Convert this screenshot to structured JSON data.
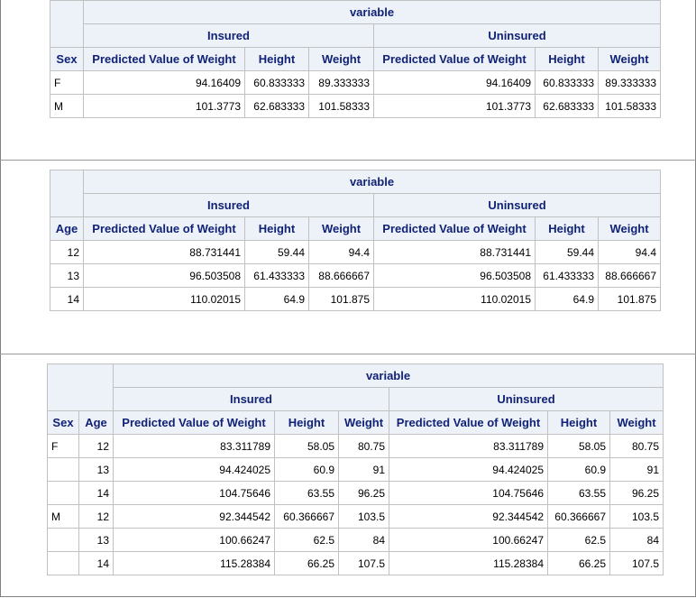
{
  "table_sex": {
    "spanner": "variable",
    "groups": [
      "Insured",
      "Uninsured"
    ],
    "row_header": "Sex",
    "columns": [
      "Predicted Value of Weight",
      "Height",
      "Weight",
      "Predicted Value of Weight",
      "Height",
      "Weight"
    ],
    "rows": [
      {
        "label": "F",
        "cells": [
          "94.16409",
          "60.833333",
          "89.333333",
          "94.16409",
          "60.833333",
          "89.333333"
        ]
      },
      {
        "label": "M",
        "cells": [
          "101.3773",
          "62.683333",
          "101.58333",
          "101.3773",
          "62.683333",
          "101.58333"
        ]
      }
    ]
  },
  "table_age": {
    "spanner": "variable",
    "groups": [
      "Insured",
      "Uninsured"
    ],
    "row_header": "Age",
    "columns": [
      "Predicted Value of Weight",
      "Height",
      "Weight",
      "Predicted Value of Weight",
      "Height",
      "Weight"
    ],
    "rows": [
      {
        "label": "12",
        "cells": [
          "88.731441",
          "59.44",
          "94.4",
          "88.731441",
          "59.44",
          "94.4"
        ]
      },
      {
        "label": "13",
        "cells": [
          "96.503508",
          "61.433333",
          "88.666667",
          "96.503508",
          "61.433333",
          "88.666667"
        ]
      },
      {
        "label": "14",
        "cells": [
          "110.02015",
          "64.9",
          "101.875",
          "110.02015",
          "64.9",
          "101.875"
        ]
      }
    ]
  },
  "table_sex_age": {
    "spanner": "variable",
    "groups": [
      "Insured",
      "Uninsured"
    ],
    "row_headers": [
      "Sex",
      "Age"
    ],
    "columns": [
      "Predicted Value of Weight",
      "Height",
      "Weight",
      "Predicted Value of Weight",
      "Height",
      "Weight"
    ],
    "rows": [
      {
        "sex": "F",
        "age": "12",
        "cells": [
          "83.311789",
          "58.05",
          "80.75",
          "83.311789",
          "58.05",
          "80.75"
        ]
      },
      {
        "sex": "",
        "age": "13",
        "cells": [
          "94.424025",
          "60.9",
          "91",
          "94.424025",
          "60.9",
          "91"
        ]
      },
      {
        "sex": "",
        "age": "14",
        "cells": [
          "104.75646",
          "63.55",
          "96.25",
          "104.75646",
          "63.55",
          "96.25"
        ]
      },
      {
        "sex": "M",
        "age": "12",
        "cells": [
          "92.344542",
          "60.366667",
          "103.5",
          "92.344542",
          "60.366667",
          "103.5"
        ]
      },
      {
        "sex": "",
        "age": "13",
        "cells": [
          "100.66247",
          "62.5",
          "84",
          "100.66247",
          "62.5",
          "84"
        ]
      },
      {
        "sex": "",
        "age": "14",
        "cells": [
          "115.28384",
          "66.25",
          "107.5",
          "115.28384",
          "66.25",
          "107.5"
        ]
      }
    ]
  }
}
